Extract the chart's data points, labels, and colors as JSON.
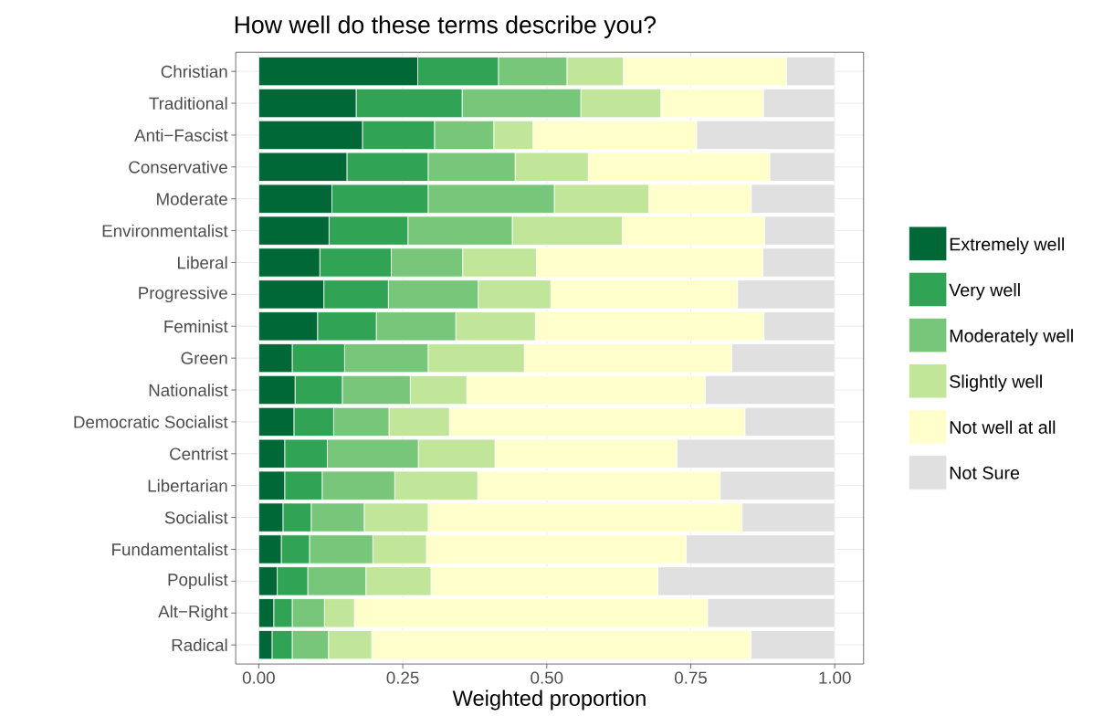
{
  "chart_data": {
    "type": "bar",
    "orientation": "horizontal",
    "stacked": true,
    "title": "How well do these terms describe you?",
    "xlabel": "Weighted proportion",
    "categories": [
      "Christian",
      "Traditional",
      "Anti−Fascist",
      "Conservative",
      "Moderate",
      "Environmentalist",
      "Liberal",
      "Progressive",
      "Feminist",
      "Green",
      "Nationalist",
      "Democratic Socialist",
      "Centrist",
      "Libertarian",
      "Socialist",
      "Fundamentalist",
      "Populist",
      "Alt−Right",
      "Radical"
    ],
    "series": [
      {
        "name": "Extremely well",
        "color": "#006837",
        "values": [
          0.276,
          0.169,
          0.18,
          0.153,
          0.127,
          0.122,
          0.106,
          0.113,
          0.102,
          0.058,
          0.063,
          0.061,
          0.045,
          0.045,
          0.042,
          0.039,
          0.032,
          0.026,
          0.023
        ]
      },
      {
        "name": "Very well",
        "color": "#31a354",
        "values": [
          0.14,
          0.184,
          0.125,
          0.141,
          0.167,
          0.137,
          0.124,
          0.112,
          0.102,
          0.091,
          0.082,
          0.069,
          0.074,
          0.065,
          0.049,
          0.049,
          0.053,
          0.032,
          0.035
        ]
      },
      {
        "name": "Moderately well",
        "color": "#78c679",
        "values": [
          0.119,
          0.206,
          0.103,
          0.151,
          0.219,
          0.181,
          0.124,
          0.156,
          0.138,
          0.145,
          0.118,
          0.096,
          0.158,
          0.126,
          0.092,
          0.11,
          0.101,
          0.056,
          0.063
        ]
      },
      {
        "name": "Slightly well",
        "color": "#c2e699",
        "values": [
          0.098,
          0.139,
          0.068,
          0.127,
          0.164,
          0.191,
          0.128,
          0.126,
          0.138,
          0.167,
          0.098,
          0.105,
          0.133,
          0.144,
          0.111,
          0.093,
          0.113,
          0.052,
          0.075
        ]
      },
      {
        "name": "Not well at all",
        "color": "#ffffcc",
        "values": [
          0.283,
          0.178,
          0.284,
          0.315,
          0.178,
          0.247,
          0.393,
          0.324,
          0.397,
          0.36,
          0.414,
          0.513,
          0.316,
          0.421,
          0.545,
          0.451,
          0.394,
          0.613,
          0.658
        ]
      },
      {
        "name": "Not Sure",
        "color": "#e0e0e0",
        "values": [
          0.084,
          0.124,
          0.24,
          0.113,
          0.145,
          0.122,
          0.125,
          0.169,
          0.123,
          0.179,
          0.225,
          0.156,
          0.274,
          0.199,
          0.161,
          0.258,
          0.307,
          0.221,
          0.146
        ]
      }
    ],
    "xlim": [
      -0.04,
      1.05
    ],
    "xticks": [
      {
        "value": 0,
        "label": "0.00"
      },
      {
        "value": 0.25,
        "label": "0.25"
      },
      {
        "value": 0.5,
        "label": "0.50"
      },
      {
        "value": 0.75,
        "label": "0.75"
      },
      {
        "value": 1,
        "label": "1.00"
      }
    ],
    "grid": true,
    "legend": "right"
  }
}
